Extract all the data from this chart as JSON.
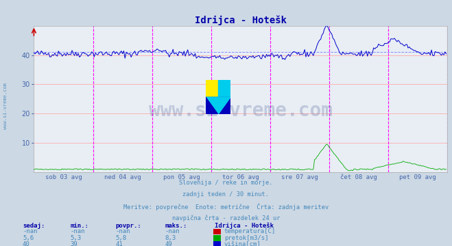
{
  "title": "Idrijca - Hotešk",
  "background_color": "#ccd8e4",
  "plot_bg_color": "#e8eef4",
  "grid_color_h": "#ffaaaa",
  "grid_color_v": "#cccccc",
  "vline_color": "#ff00ff",
  "avg_line_color": "#8888ff",
  "xlabel_color": "#4466aa",
  "ylim": [
    0,
    50
  ],
  "yticks": [
    10,
    20,
    30,
    40
  ],
  "num_points": 336,
  "days": [
    "sob 03 avg",
    "ned 04 avg",
    "pon 05 avg",
    "tor 06 avg",
    "sre 07 avg",
    "čet 08 avg",
    "pet 09 avg"
  ],
  "subtitle_lines": [
    "Slovenija / reke in morje.",
    "zadnji teden / 30 minut.",
    "Meritve: povprečne  Enote: metrične  Črta: zadnja meritev",
    "navpična črta - razdelek 24 ur"
  ],
  "legend_title": "Idrijca - Hotešk",
  "legend_rows": [
    [
      "-nan",
      "-nan",
      "-nan",
      "-nan",
      "#cc0000",
      "temperatura[C]"
    ],
    [
      "5,6",
      "5,3",
      "5,8",
      "8,3",
      "#00aa00",
      "pretok[m3/s]"
    ],
    [
      "40",
      "39",
      "41",
      "49",
      "#0000cc",
      "višina[cm]"
    ]
  ],
  "watermark": "www.si-vreme.com",
  "watermark_color": "#334488",
  "watermark_alpha": 0.22,
  "title_color": "#0000aa",
  "text_color": "#4488bb",
  "logo_colors": [
    "#ffee00",
    "#00ccee",
    "#0000bb"
  ]
}
